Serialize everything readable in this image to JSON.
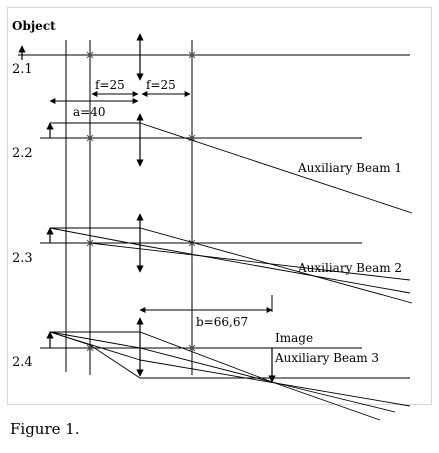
{
  "labels": {
    "object": "Object",
    "step_1": "2.1",
    "step_2": "2.2",
    "step_3": "2.3",
    "step_4": "2.4",
    "focal_left": "f=25",
    "focal_right": "f=25",
    "object_distance": "a=40",
    "image_distance": "b=66,67",
    "image": "Image",
    "aux_beam_1": "Auxiliary Beam 1",
    "aux_beam_2": "Auxiliary Beam 2",
    "aux_beam_3": "Auxiliary Beam 3"
  },
  "caption": "Figure 1."
}
